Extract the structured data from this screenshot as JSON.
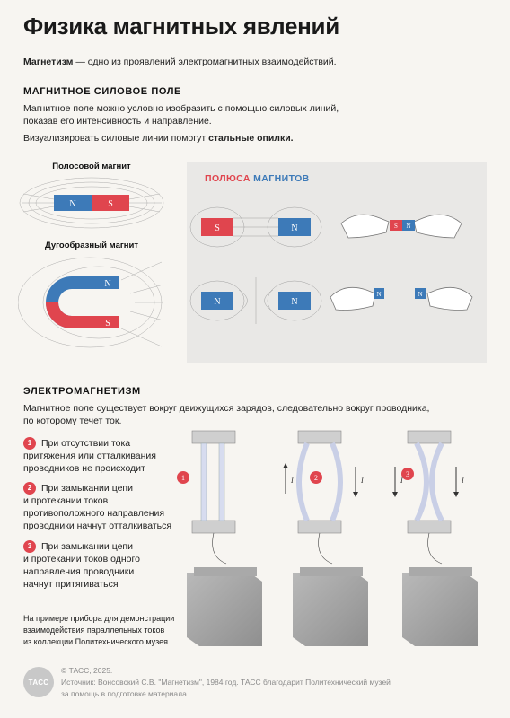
{
  "title": "Физика магнитных явлений",
  "intro": {
    "term": "Магнетизм",
    "rest": " — одно из проявлений электромагнитных взаимодействий."
  },
  "section1": {
    "heading": "МАГНИТНОЕ СИЛОВОЕ ПОЛЕ",
    "p1_line1": "Магнитное поле можно условно изобразить с помощью силовых линий,",
    "p1_line2": "показав его интенсивность и направление.",
    "p2_pre": "Визуализировать силовые линии помогут ",
    "p2_bold": "стальные опилки."
  },
  "magnets": {
    "bar_caption": "Полосовой магнит",
    "horseshoe_caption": "Дугообразный магнит",
    "pole_n": "N",
    "pole_s": "S"
  },
  "poles_panel": {
    "title_word1": "ПОЛЮСА",
    "title_word2": "МАГНИТОВ"
  },
  "section2": {
    "heading": "ЭЛЕКТРОМАГНЕТИЗМ",
    "p_line1": "Магнитное поле существует вокруг движущихся зарядов, следовательно вокруг проводника,",
    "p_line2": "по которому течет ток."
  },
  "steps": [
    {
      "num": "1",
      "l1": "При отсутствии тока",
      "l2": "притяжения или отталкивания",
      "l3": "проводников не происходит",
      "l4": ""
    },
    {
      "num": "2",
      "l1": "При замыкании цепи",
      "l2": "и протекании токов",
      "l3": "противоположного направления",
      "l4": "проводники начнут отталкиваться"
    },
    {
      "num": "3",
      "l1": "При замыкании цепи",
      "l2": "и протекании токов одного",
      "l3": "направления проводники",
      "l4": "начнут притягиваться"
    }
  ],
  "current_label": "I",
  "note": {
    "l1": "На примере прибора для демонстрации",
    "l2": "взаимодействия параллельных токов",
    "l3": "из коллекции Политехнического музея."
  },
  "footer": {
    "logo": "ТАСС",
    "copyright": "© ТАСС, 2025.",
    "source1": "Источник: Вонсовский С.В. \"Магнетизм\", 1984 год. ТАСС благодарит Политехнический музей",
    "source2": "за помощь в подготовке материала."
  },
  "colors": {
    "red": "#e0454e",
    "blue": "#3d7ab8",
    "panel_bg": "#e9e8e6",
    "accent_num": "#e0454e"
  }
}
